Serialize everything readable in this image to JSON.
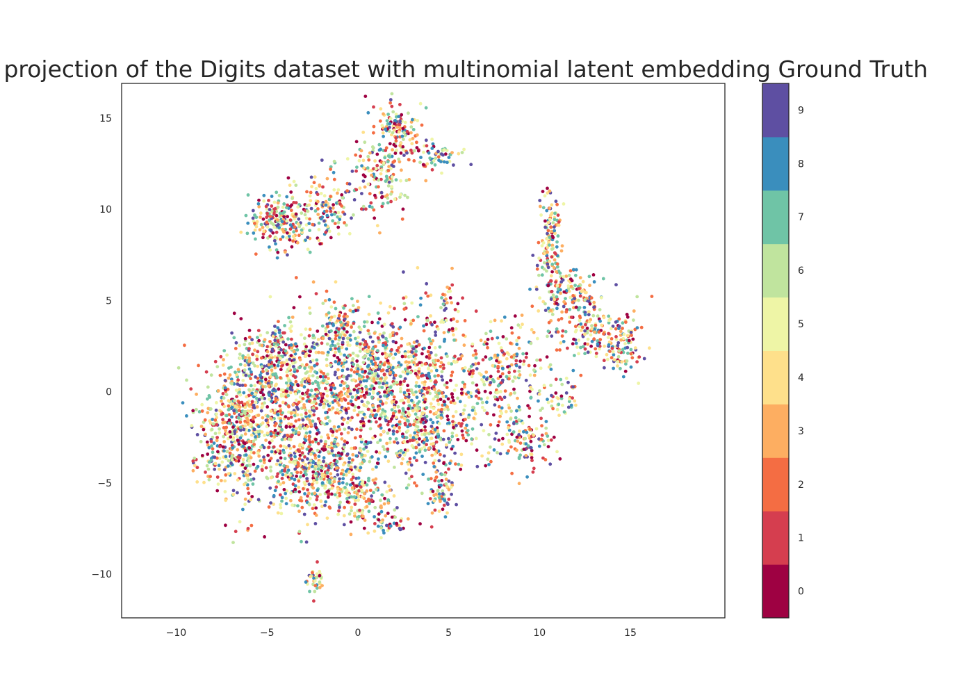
{
  "chart_data": {
    "type": "scatter",
    "title": "projection of the Digits dataset with multinomial latent embedding Ground Truth",
    "xlabel": "",
    "ylabel": "",
    "xlim": [
      -13,
      20.2
    ],
    "ylim": [
      -12.4,
      16.9
    ],
    "x_ticks": [
      {
        "value": -10,
        "label": "−10"
      },
      {
        "value": -5,
        "label": "−5"
      },
      {
        "value": 0,
        "label": "0"
      },
      {
        "value": 5,
        "label": "5"
      },
      {
        "value": 10,
        "label": "10"
      },
      {
        "value": 15,
        "label": "15"
      }
    ],
    "y_ticks": [
      {
        "value": -10,
        "label": "−10"
      },
      {
        "value": -5,
        "label": "−5"
      },
      {
        "value": 0,
        "label": "0"
      },
      {
        "value": 5,
        "label": "5"
      },
      {
        "value": 10,
        "label": "10"
      },
      {
        "value": 15,
        "label": "15"
      }
    ],
    "grid": false,
    "colormap": "Spectral",
    "colorbar": {
      "labels": [
        "0",
        "1",
        "2",
        "3",
        "4",
        "5",
        "6",
        "7",
        "8",
        "9"
      ],
      "colors": [
        "#9e0142",
        "#d53e4f",
        "#f46d43",
        "#fdae61",
        "#fee08b",
        "#eef5a6",
        "#c0e49e",
        "#6fc4a6",
        "#3a8ebd",
        "#5e4fa2"
      ]
    },
    "clusters": [
      {
        "center": [
          -4.2,
          9.4
        ],
        "spread": [
          0.9,
          0.8
        ],
        "n": 220
      },
      {
        "center": [
          -1.5,
          10.2
        ],
        "spread": [
          0.7,
          0.9
        ],
        "n": 120
      },
      {
        "center": [
          1.2,
          12.0
        ],
        "spread": [
          0.8,
          1.2
        ],
        "n": 170
      },
      {
        "center": [
          2.2,
          14.6
        ],
        "spread": [
          0.5,
          0.6
        ],
        "n": 90
      },
      {
        "center": [
          3.9,
          13.0
        ],
        "spread": [
          1.0,
          0.4
        ],
        "n": 70
      },
      {
        "center": [
          10.6,
          8.0
        ],
        "spread": [
          0.35,
          1.8
        ],
        "n": 150
      },
      {
        "center": [
          11.7,
          5.5
        ],
        "spread": [
          0.8,
          0.7
        ],
        "n": 120
      },
      {
        "center": [
          13.2,
          3.3
        ],
        "spread": [
          1.2,
          0.8
        ],
        "n": 170
      },
      {
        "center": [
          14.6,
          2.0
        ],
        "spread": [
          0.6,
          0.6
        ],
        "n": 60
      },
      {
        "center": [
          8.0,
          0.8
        ],
        "spread": [
          1.1,
          1.6
        ],
        "n": 230
      },
      {
        "center": [
          9.2,
          -2.8
        ],
        "spread": [
          0.8,
          0.8
        ],
        "n": 100
      },
      {
        "center": [
          11.2,
          -0.5
        ],
        "spread": [
          0.6,
          0.5
        ],
        "n": 40
      },
      {
        "center": [
          1.5,
          0.8
        ],
        "spread": [
          2.4,
          1.9
        ],
        "n": 950
      },
      {
        "center": [
          3.9,
          -2.2
        ],
        "spread": [
          1.3,
          1.6
        ],
        "n": 350
      },
      {
        "center": [
          -3.5,
          -1.5
        ],
        "spread": [
          1.9,
          2.3
        ],
        "n": 800
      },
      {
        "center": [
          -6.8,
          -1.5
        ],
        "spread": [
          1.1,
          2.0
        ],
        "n": 380
      },
      {
        "center": [
          -4.3,
          2.0
        ],
        "spread": [
          1.0,
          0.7
        ],
        "n": 170
      },
      {
        "center": [
          -1.8,
          -4.6
        ],
        "spread": [
          1.4,
          1.1
        ],
        "n": 320
      },
      {
        "center": [
          0.2,
          -6.0
        ],
        "spread": [
          0.9,
          0.6
        ],
        "n": 100
      },
      {
        "center": [
          4.6,
          -5.5
        ],
        "spread": [
          0.3,
          0.7
        ],
        "n": 45
      },
      {
        "center": [
          -8.0,
          -4.0
        ],
        "spread": [
          0.6,
          0.5
        ],
        "n": 40
      },
      {
        "center": [
          5.0,
          4.5
        ],
        "spread": [
          0.3,
          0.8
        ],
        "n": 35
      },
      {
        "center": [
          -1.0,
          3.5
        ],
        "spread": [
          0.5,
          0.8
        ],
        "n": 80
      },
      {
        "center": [
          1.8,
          -7.2
        ],
        "spread": [
          0.6,
          0.4
        ],
        "n": 40
      },
      {
        "center": [
          -2.3,
          -10.4
        ],
        "spread": [
          0.25,
          0.35
        ],
        "n": 35
      }
    ]
  }
}
